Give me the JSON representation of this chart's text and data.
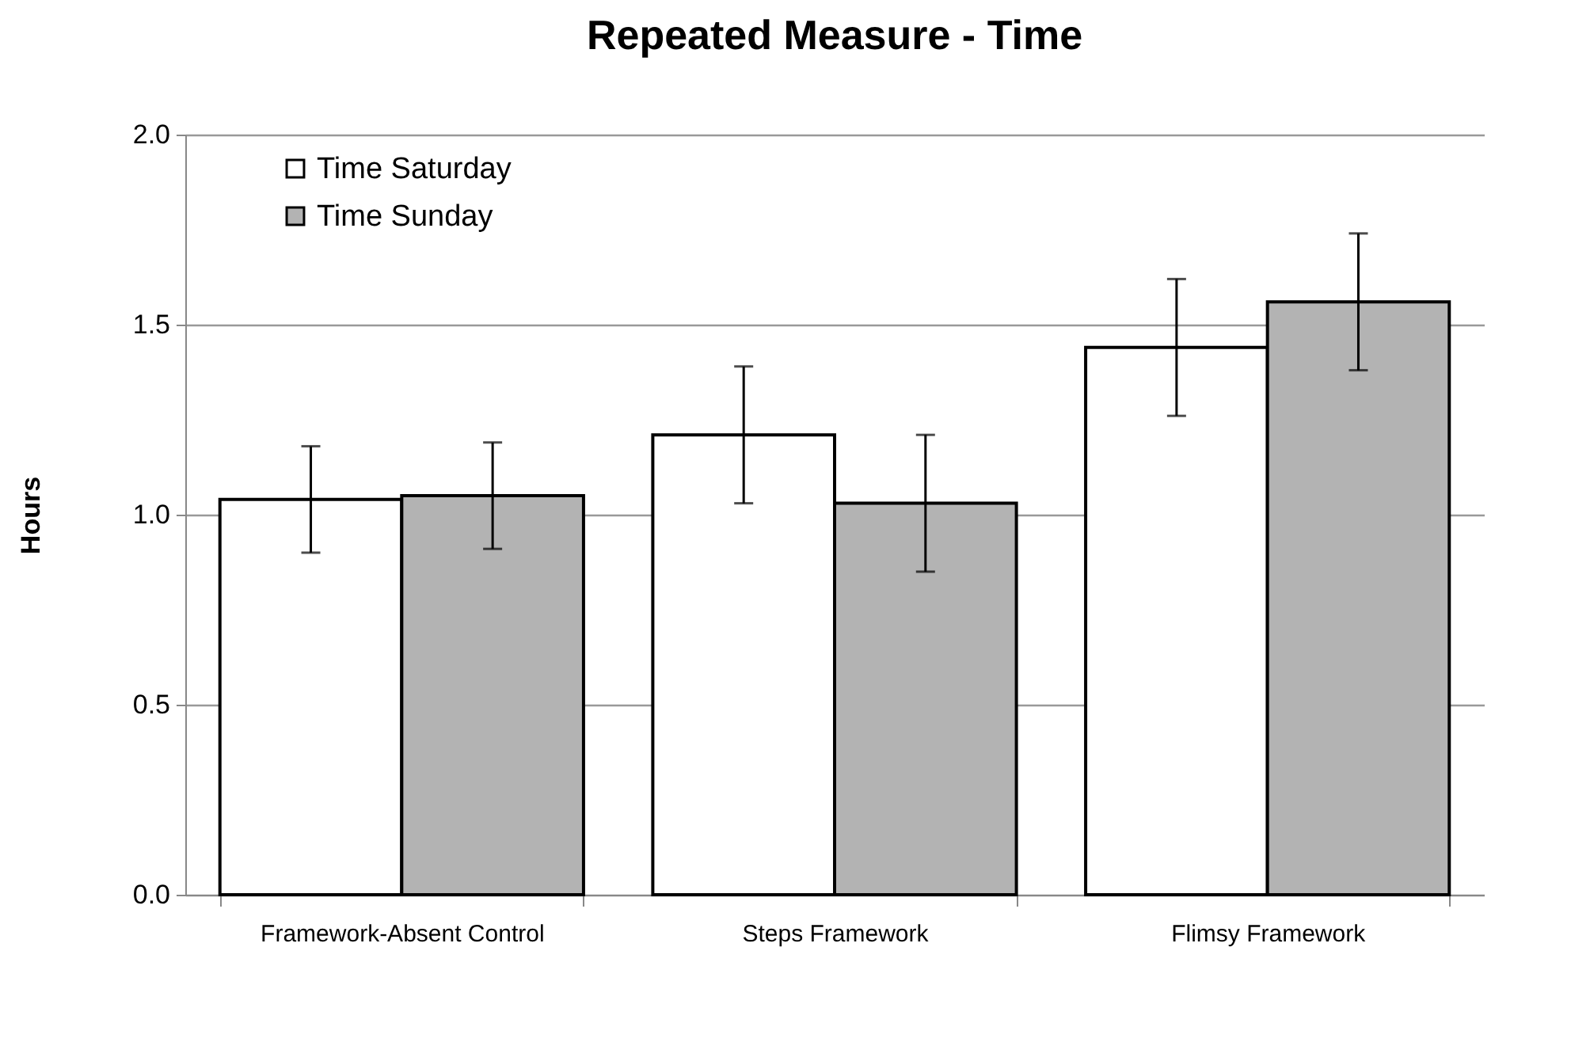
{
  "chart_data": {
    "type": "bar",
    "title": "Repeated Measure - Time",
    "ylabel": "Hours",
    "categories": [
      "Framework-Absent Control",
      "Steps Framework",
      "Flimsy Framework"
    ],
    "series": [
      {
        "name": "Time Saturday",
        "color": "#ffffff",
        "values": [
          1.04,
          1.21,
          1.44
        ],
        "errors": [
          0.14,
          0.18,
          0.18
        ]
      },
      {
        "name": "Time Sunday",
        "color": "#b3b3b3",
        "values": [
          1.05,
          1.03,
          1.56
        ],
        "errors": [
          0.14,
          0.18,
          0.18
        ]
      }
    ],
    "ylim": [
      0,
      2
    ],
    "yticks": [
      {
        "value": 0,
        "label": "0.0"
      },
      {
        "value": 0.5,
        "label": "0.5"
      },
      {
        "value": 1,
        "label": "1.0"
      },
      {
        "value": 1.5,
        "label": "1.5"
      },
      {
        "value": 2,
        "label": "2.0"
      }
    ],
    "grid": "y",
    "legend": "top left"
  }
}
